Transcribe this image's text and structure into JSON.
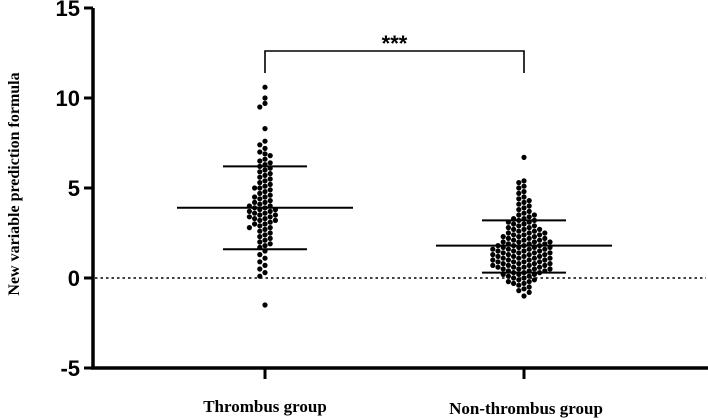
{
  "chart_data": {
    "type": "scatter",
    "title": "",
    "xlabel": "",
    "ylabel": "New variable prediction formula",
    "ylim": [
      -5,
      15
    ],
    "yticks": [
      -5,
      0,
      5,
      10,
      15
    ],
    "reference_line": 0,
    "categories": [
      "Thrombus group",
      "Non-thrombus group"
    ],
    "series": [
      {
        "category": "Thrombus group",
        "mean": 3.9,
        "sd_upper": 6.2,
        "sd_lower": 1.6,
        "values": [
          10.6,
          10.0,
          9.7,
          9.5,
          8.3,
          7.6,
          7.4,
          7.2,
          7.0,
          6.9,
          6.8,
          6.6,
          6.5,
          6.4,
          6.3,
          6.2,
          6.1,
          6.0,
          5.9,
          5.8,
          5.7,
          5.6,
          5.5,
          5.4,
          5.3,
          5.2,
          5.1,
          5.0,
          5.0,
          4.9,
          4.8,
          4.7,
          4.6,
          4.5,
          4.5,
          4.4,
          4.3,
          4.2,
          4.2,
          4.1,
          4.0,
          4.0,
          3.9,
          3.9,
          3.8,
          3.8,
          3.7,
          3.7,
          3.6,
          3.6,
          3.5,
          3.5,
          3.4,
          3.4,
          3.3,
          3.3,
          3.2,
          3.2,
          3.1,
          3.0,
          3.0,
          2.9,
          2.8,
          2.8,
          2.7,
          2.6,
          2.5,
          2.4,
          2.3,
          2.2,
          2.1,
          2.0,
          1.9,
          1.8,
          1.7,
          1.5,
          1.3,
          1.1,
          0.9,
          0.7,
          0.5,
          0.3,
          0.1,
          -1.5
        ]
      },
      {
        "category": "Non-thrombus group",
        "mean": 1.8,
        "sd_upper": 3.2,
        "sd_lower": 0.3,
        "values": [
          6.7,
          5.4,
          5.3,
          5.1,
          5.0,
          4.8,
          4.7,
          4.5,
          4.4,
          4.3,
          4.2,
          4.1,
          4.0,
          3.9,
          3.8,
          3.7,
          3.6,
          3.5,
          3.5,
          3.4,
          3.3,
          3.3,
          3.2,
          3.2,
          3.1,
          3.1,
          3.0,
          3.0,
          2.9,
          2.9,
          2.8,
          2.8,
          2.7,
          2.7,
          2.7,
          2.6,
          2.6,
          2.5,
          2.5,
          2.5,
          2.4,
          2.4,
          2.4,
          2.3,
          2.3,
          2.3,
          2.2,
          2.2,
          2.2,
          2.1,
          2.1,
          2.1,
          2.0,
          2.0,
          2.0,
          2.0,
          1.9,
          1.9,
          1.9,
          1.8,
          1.8,
          1.8,
          1.8,
          1.7,
          1.7,
          1.7,
          1.7,
          1.6,
          1.6,
          1.6,
          1.6,
          1.5,
          1.5,
          1.5,
          1.5,
          1.4,
          1.4,
          1.4,
          1.4,
          1.3,
          1.3,
          1.3,
          1.3,
          1.2,
          1.2,
          1.2,
          1.2,
          1.1,
          1.1,
          1.1,
          1.1,
          1.0,
          1.0,
          1.0,
          1.0,
          0.9,
          0.9,
          0.9,
          0.9,
          0.8,
          0.8,
          0.8,
          0.8,
          0.7,
          0.7,
          0.7,
          0.7,
          0.6,
          0.6,
          0.6,
          0.6,
          0.5,
          0.5,
          0.5,
          0.5,
          0.4,
          0.4,
          0.4,
          0.3,
          0.3,
          0.3,
          0.2,
          0.2,
          0.2,
          0.1,
          0.1,
          0.0,
          0.0,
          -0.1,
          -0.1,
          -0.2,
          -0.2,
          -0.3,
          -0.3,
          -0.4,
          -0.5,
          -0.6,
          -0.7,
          -0.8,
          -1.0
        ]
      }
    ],
    "significance": {
      "label": "***",
      "between": [
        "Thrombus group",
        "Non-thrombus group"
      ]
    }
  }
}
